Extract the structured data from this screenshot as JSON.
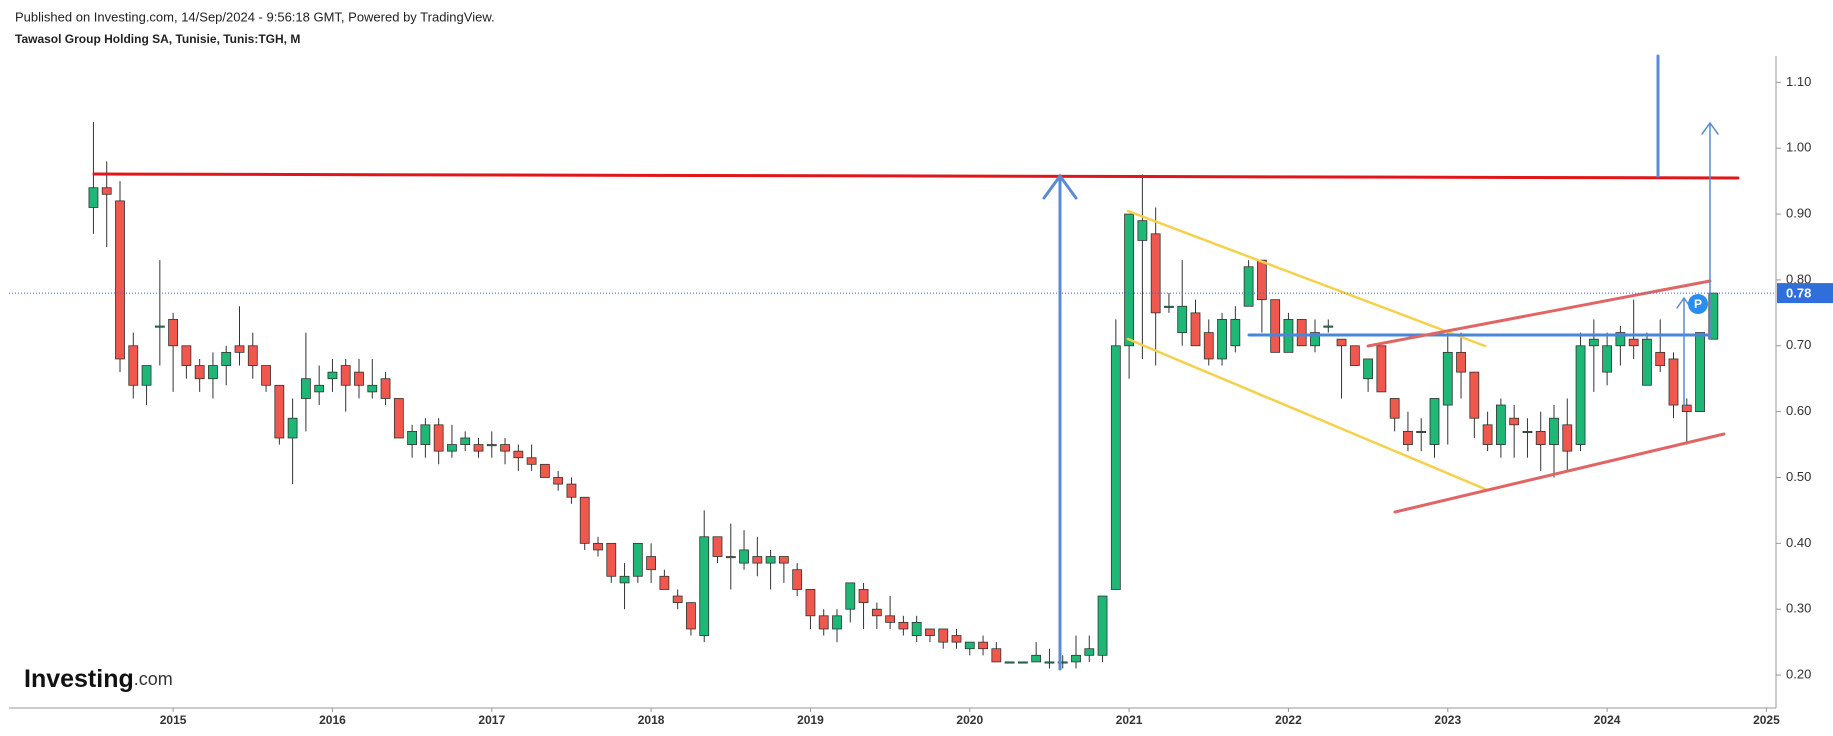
{
  "chart_data": {
    "type": "candlestick",
    "subtitle": "Published on Investing.com, 14/Sep/2024 - 9:56:18 GMT, Powered by TradingView.",
    "title": "Tawasol Group Holding SA, Tunisie, Tunis:TGH, M",
    "x": [
      2014.5,
      2014.5833,
      2014.6667,
      2014.75,
      2014.8333,
      2014.9167,
      2015,
      2015.0833,
      2015.1667,
      2015.25,
      2015.3333,
      2015.4167,
      2015.5,
      2015.5833,
      2015.6667,
      2015.75,
      2015.8333,
      2015.9167,
      2016,
      2016.0833,
      2016.1667,
      2016.25,
      2016.3333,
      2016.4167,
      2016.5,
      2016.5833,
      2016.6667,
      2016.75,
      2016.8333,
      2016.9167,
      2017,
      2017.0833,
      2017.1667,
      2017.25,
      2017.3333,
      2017.4167,
      2017.5,
      2017.5833,
      2017.6667,
      2017.75,
      2017.8333,
      2017.9167,
      2018,
      2018.0833,
      2018.1667,
      2018.25,
      2018.3333,
      2018.4167,
      2018.5,
      2018.5833,
      2018.6667,
      2018.75,
      2018.8333,
      2018.9167,
      2019,
      2019.0833,
      2019.1667,
      2019.25,
      2019.3333,
      2019.4167,
      2019.5,
      2019.5833,
      2019.6667,
      2019.75,
      2019.8333,
      2019.9167,
      2020,
      2020.0833,
      2020.1667,
      2020.25,
      2020.3333,
      2020.4167,
      2020.5,
      2020.5833,
      2020.6667,
      2020.75,
      2020.8333,
      2020.9167,
      2021,
      2021.0833,
      2021.1667,
      2021.25,
      2021.3333,
      2021.4167,
      2021.5,
      2021.5833,
      2021.6667,
      2021.75,
      2021.8333,
      2021.9167,
      2022,
      2022.0833,
      2022.1667,
      2022.25,
      2022.3333,
      2022.4167,
      2022.5,
      2022.5833,
      2022.6667,
      2022.75,
      2022.8333,
      2022.9167,
      2023,
      2023.0833,
      2023.1667,
      2023.25,
      2023.3333,
      2023.4167,
      2023.5,
      2023.5833,
      2023.6667,
      2023.75,
      2023.8333,
      2023.9167,
      2024,
      2024.0833,
      2024.1667,
      2024.25,
      2024.3333,
      2024.4167,
      2024.5,
      2024.5833,
      2024.6667
    ],
    "open": [
      0.91,
      0.94,
      0.92,
      0.7,
      0.64,
      0.73,
      0.74,
      0.7,
      0.67,
      0.65,
      0.67,
      0.7,
      0.7,
      0.67,
      0.64,
      0.56,
      0.62,
      0.63,
      0.65,
      0.67,
      0.66,
      0.63,
      0.65,
      0.62,
      0.55,
      0.55,
      0.58,
      0.54,
      0.55,
      0.55,
      0.55,
      0.55,
      0.54,
      0.53,
      0.52,
      0.5,
      0.49,
      0.47,
      0.4,
      0.4,
      0.34,
      0.35,
      0.38,
      0.35,
      0.32,
      0.31,
      0.26,
      0.41,
      0.38,
      0.37,
      0.38,
      0.37,
      0.38,
      0.36,
      0.33,
      0.29,
      0.27,
      0.3,
      0.33,
      0.3,
      0.29,
      0.28,
      0.26,
      0.27,
      0.27,
      0.26,
      0.24,
      0.25,
      0.24,
      0.22,
      0.22,
      0.22,
      0.22,
      0.22,
      0.22,
      0.23,
      0.23,
      0.33,
      0.7,
      0.86,
      0.87,
      0.76,
      0.72,
      0.75,
      0.72,
      0.68,
      0.7,
      0.76,
      0.83,
      0.77,
      0.69,
      0.74,
      0.7,
      0.73,
      0.71,
      0.7,
      0.65,
      0.7,
      0.62,
      0.57,
      0.57,
      0.55,
      0.61,
      0.69,
      0.66,
      0.58,
      0.55,
      0.59,
      0.57,
      0.57,
      0.55,
      0.58,
      0.55,
      0.7,
      0.66,
      0.7,
      0.71,
      0.64,
      0.69,
      0.68,
      0.61,
      0.6,
      0.71
    ],
    "high": [
      1.04,
      0.98,
      0.95,
      0.72,
      0.67,
      0.83,
      0.75,
      0.7,
      0.68,
      0.69,
      0.7,
      0.76,
      0.72,
      0.67,
      0.64,
      0.62,
      0.72,
      0.67,
      0.68,
      0.68,
      0.68,
      0.68,
      0.66,
      0.62,
      0.58,
      0.59,
      0.59,
      0.58,
      0.57,
      0.56,
      0.57,
      0.56,
      0.55,
      0.55,
      0.52,
      0.51,
      0.5,
      0.47,
      0.41,
      0.4,
      0.37,
      0.4,
      0.4,
      0.36,
      0.33,
      0.31,
      0.45,
      0.41,
      0.43,
      0.42,
      0.41,
      0.39,
      0.38,
      0.37,
      0.33,
      0.3,
      0.3,
      0.34,
      0.34,
      0.31,
      0.32,
      0.29,
      0.29,
      0.27,
      0.27,
      0.27,
      0.25,
      0.26,
      0.25,
      0.22,
      0.22,
      0.25,
      0.24,
      0.23,
      0.26,
      0.26,
      0.32,
      0.74,
      0.9,
      0.96,
      0.91,
      0.78,
      0.83,
      0.77,
      0.74,
      0.75,
      0.76,
      0.83,
      0.83,
      0.77,
      0.75,
      0.74,
      0.74,
      0.74,
      0.71,
      0.7,
      0.68,
      0.7,
      0.62,
      0.6,
      0.59,
      0.62,
      0.72,
      0.72,
      0.66,
      0.6,
      0.62,
      0.61,
      0.59,
      0.6,
      0.61,
      0.62,
      0.72,
      0.74,
      0.72,
      0.73,
      0.77,
      0.72,
      0.74,
      0.69,
      0.62,
      0.72,
      0.78
    ],
    "low": [
      0.87,
      0.85,
      0.66,
      0.62,
      0.61,
      0.67,
      0.63,
      0.65,
      0.63,
      0.62,
      0.64,
      0.67,
      0.65,
      0.63,
      0.55,
      0.49,
      0.57,
      0.61,
      0.63,
      0.6,
      0.62,
      0.62,
      0.61,
      0.56,
      0.53,
      0.53,
      0.52,
      0.53,
      0.54,
      0.53,
      0.53,
      0.52,
      0.51,
      0.51,
      0.5,
      0.48,
      0.46,
      0.39,
      0.38,
      0.34,
      0.3,
      0.34,
      0.34,
      0.33,
      0.3,
      0.26,
      0.25,
      0.37,
      0.33,
      0.36,
      0.35,
      0.33,
      0.34,
      0.32,
      0.27,
      0.26,
      0.25,
      0.28,
      0.27,
      0.27,
      0.27,
      0.26,
      0.25,
      0.25,
      0.24,
      0.24,
      0.23,
      0.23,
      0.22,
      0.22,
      0.22,
      0.22,
      0.21,
      0.21,
      0.21,
      0.22,
      0.22,
      0.33,
      0.65,
      0.68,
      0.67,
      0.75,
      0.7,
      0.7,
      0.67,
      0.67,
      0.69,
      0.76,
      0.72,
      0.69,
      0.69,
      0.7,
      0.69,
      0.72,
      0.62,
      0.67,
      0.63,
      0.63,
      0.57,
      0.54,
      0.54,
      0.53,
      0.55,
      0.62,
      0.56,
      0.54,
      0.53,
      0.53,
      0.53,
      0.51,
      0.5,
      0.51,
      0.54,
      0.63,
      0.64,
      0.67,
      0.68,
      0.64,
      0.66,
      0.59,
      0.55,
      0.6,
      0.71
    ],
    "close": [
      0.94,
      0.93,
      0.68,
      0.64,
      0.67,
      0.73,
      0.7,
      0.67,
      0.65,
      0.67,
      0.69,
      0.69,
      0.67,
      0.64,
      0.56,
      0.59,
      0.65,
      0.64,
      0.66,
      0.64,
      0.64,
      0.64,
      0.62,
      0.56,
      0.57,
      0.58,
      0.54,
      0.55,
      0.56,
      0.54,
      0.55,
      0.54,
      0.53,
      0.52,
      0.5,
      0.49,
      0.47,
      0.4,
      0.39,
      0.35,
      0.35,
      0.4,
      0.36,
      0.33,
      0.31,
      0.27,
      0.41,
      0.38,
      0.38,
      0.39,
      0.37,
      0.38,
      0.37,
      0.33,
      0.29,
      0.27,
      0.29,
      0.34,
      0.31,
      0.29,
      0.28,
      0.27,
      0.28,
      0.26,
      0.25,
      0.25,
      0.25,
      0.24,
      0.22,
      0.22,
      0.22,
      0.23,
      0.22,
      0.22,
      0.23,
      0.24,
      0.32,
      0.7,
      0.9,
      0.89,
      0.75,
      0.76,
      0.76,
      0.7,
      0.68,
      0.74,
      0.74,
      0.82,
      0.77,
      0.69,
      0.74,
      0.7,
      0.72,
      0.73,
      0.7,
      0.67,
      0.68,
      0.63,
      0.59,
      0.55,
      0.57,
      0.62,
      0.69,
      0.66,
      0.59,
      0.55,
      0.61,
      0.58,
      0.57,
      0.55,
      0.59,
      0.54,
      0.7,
      0.71,
      0.7,
      0.72,
      0.7,
      0.71,
      0.67,
      0.61,
      0.6,
      0.72,
      0.78
    ],
    "up_color": "#1fb776",
    "down_color": "#f0584d",
    "xlim": [
      2013.97,
      2025.06
    ],
    "xticks": [
      2015,
      2016,
      2017,
      2018,
      2019,
      2020,
      2021,
      2022,
      2023,
      2024,
      2025
    ],
    "ylim": [
      0.15,
      1.14
    ],
    "yticks": [
      {
        "value": 0.2,
        "label": "0.20"
      },
      {
        "value": 0.3,
        "label": "0.30"
      },
      {
        "value": 0.4,
        "label": "0.40"
      },
      {
        "value": 0.5,
        "label": "0.50"
      },
      {
        "value": 0.6,
        "label": "0.60"
      },
      {
        "value": 0.7,
        "label": "0.70"
      },
      {
        "value": 0.8,
        "label": "0.80"
      },
      {
        "value": 0.9,
        "label": "0.90"
      },
      {
        "value": 1.0,
        "label": "1.00"
      },
      {
        "value": 1.1,
        "label": "1.10"
      }
    ],
    "grid": false,
    "badge": "P"
  },
  "logo": {
    "name": "Investing",
    "suffix": ".com"
  }
}
